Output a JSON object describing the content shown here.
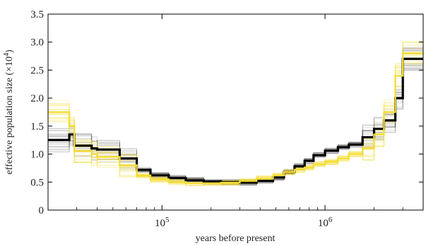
{
  "chart_data": {
    "type": "line",
    "xlabel": "years before present",
    "ylabel": "effective population size (×10",
    "ylabel_exp": "4",
    "ylabel_close": ")",
    "x_scale": "log",
    "xlim": [
      20000,
      4000000
    ],
    "ylim": [
      0,
      3.5
    ],
    "y_ticks": [
      "0",
      "0.5",
      "1.0",
      "1.5",
      "2.0",
      "2.5",
      "3.0",
      "3.5"
    ],
    "y_tick_values": [
      0,
      0.5,
      1.0,
      1.5,
      2.0,
      2.5,
      3.0,
      3.5
    ],
    "x_ticks": [
      {
        "value": 100000,
        "base": "10",
        "exp": "5"
      },
      {
        "value": 1000000,
        "base": "10",
        "exp": "6"
      }
    ],
    "grid": false,
    "series": [
      {
        "style": "bootstrap",
        "color": "#000000",
        "x": [
          20000,
          27000,
          29000,
          37000,
          40000,
          55000,
          70000,
          85000,
          110000,
          140000,
          180000,
          230000,
          300000,
          380000,
          480000,
          560000,
          650000,
          750000,
          850000,
          1000000,
          1200000,
          1400000,
          1700000,
          2000000,
          2300000,
          2700000,
          3000000,
          4000000
        ],
        "y": [
          1.25,
          1.35,
          1.15,
          1.1,
          1.08,
          0.92,
          0.72,
          0.62,
          0.57,
          0.53,
          0.51,
          0.5,
          0.49,
          0.52,
          0.58,
          0.68,
          0.78,
          0.88,
          0.98,
          1.06,
          1.12,
          1.17,
          1.3,
          1.45,
          1.6,
          2.0,
          2.7,
          2.7
        ]
      },
      {
        "style": "bootstrap",
        "color": "#f5dd35",
        "x": [
          20000,
          27000,
          29000,
          37000,
          40000,
          55000,
          70000,
          85000,
          110000,
          140000,
          180000,
          230000,
          300000,
          380000,
          480000,
          560000,
          650000,
          750000,
          850000,
          1000000,
          1200000,
          1400000,
          1700000,
          2000000,
          2300000,
          2700000,
          3000000,
          4000000
        ],
        "y": [
          1.75,
          1.5,
          1.05,
          1.0,
          0.95,
          0.8,
          0.62,
          0.55,
          0.5,
          0.48,
          0.48,
          0.49,
          0.52,
          0.56,
          0.62,
          0.68,
          0.72,
          0.76,
          0.82,
          0.86,
          0.92,
          1.0,
          1.1,
          1.35,
          1.75,
          2.4,
          2.8,
          2.8
        ]
      },
      {
        "style": "main",
        "color": "#000000",
        "x": [
          20000,
          27000,
          29000,
          37000,
          40000,
          55000,
          70000,
          85000,
          110000,
          140000,
          180000,
          230000,
          300000,
          380000,
          480000,
          560000,
          650000,
          750000,
          850000,
          1000000,
          1200000,
          1400000,
          1700000,
          2000000,
          2300000,
          2700000,
          3000000,
          4000000
        ],
        "y": [
          1.25,
          1.35,
          1.15,
          1.1,
          1.08,
          0.92,
          0.72,
          0.62,
          0.57,
          0.53,
          0.51,
          0.5,
          0.49,
          0.52,
          0.58,
          0.68,
          0.78,
          0.88,
          0.98,
          1.06,
          1.12,
          1.17,
          1.3,
          1.45,
          1.6,
          2.0,
          2.7,
          2.7
        ]
      },
      {
        "style": "main",
        "color": "#f5dd35",
        "x": [
          20000,
          27000,
          29000,
          37000,
          40000,
          55000,
          70000,
          85000,
          110000,
          140000,
          180000,
          230000,
          300000,
          380000,
          480000,
          560000,
          650000,
          750000,
          850000,
          1000000,
          1200000,
          1400000,
          1700000,
          2000000,
          2300000,
          2700000,
          3000000,
          4000000
        ],
        "y": [
          1.75,
          1.5,
          1.05,
          1.0,
          0.95,
          0.8,
          0.62,
          0.55,
          0.5,
          0.48,
          0.48,
          0.49,
          0.52,
          0.56,
          0.62,
          0.68,
          0.72,
          0.76,
          0.82,
          0.86,
          0.92,
          1.0,
          1.1,
          1.35,
          1.75,
          2.4,
          2.8,
          2.8
        ]
      }
    ]
  }
}
